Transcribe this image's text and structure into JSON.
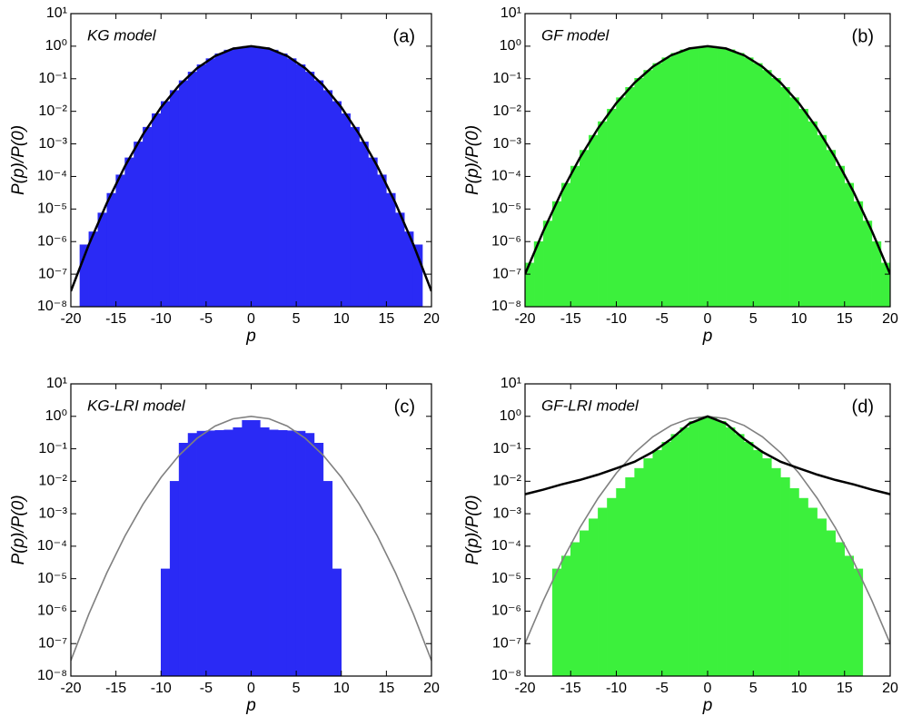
{
  "chart_data": [
    {
      "type": "histogram",
      "title": "KG model",
      "panel": "(a)",
      "xlabel": "p",
      "ylabel": "P(p)/P(0)",
      "color": "#2a2af5",
      "log_y": true,
      "bins": [
        -20,
        -19,
        -18,
        -17,
        -16,
        -15,
        -14,
        -13,
        -12,
        -11,
        -10,
        -9,
        -8,
        -7,
        -6,
        -5,
        -4,
        -3,
        -2,
        -1,
        0,
        1,
        2,
        3,
        4,
        5,
        6,
        7,
        8,
        9,
        10,
        11,
        12,
        13,
        14,
        15,
        16,
        17,
        18,
        19,
        20
      ],
      "values": [
        0,
        8e-07,
        2e-06,
        7.6e-06,
        3.04e-05,
        0.000112,
        0.000374,
        0.00115,
        0.00326,
        0.00846,
        0.0201,
        0.0438,
        0.0876,
        0.161,
        0.27,
        0.416,
        0.589,
        0.763,
        0.907,
        0.989,
        0.989,
        0.907,
        0.763,
        0.589,
        0.416,
        0.27,
        0.161,
        0.0876,
        0.0438,
        0.0201,
        0.00846,
        0.00326,
        0.00115,
        0.000374,
        0.000112,
        3.04e-05,
        7.6e-06,
        2e-06,
        8e-07,
        0
      ],
      "curves": [
        {
          "color": "#000000",
          "x": [
            -20,
            -18,
            -16,
            -14,
            -12,
            -10,
            -8,
            -6,
            -4,
            -2,
            0,
            2,
            4,
            6,
            8,
            10,
            12,
            14,
            16,
            18,
            20
          ],
          "values": [
            3e-08,
            8.1e-07,
            1.54e-05,
            0.000207,
            0.00196,
            0.0132,
            0.0626,
            0.21,
            0.5,
            0.841,
            1,
            0.841,
            0.5,
            0.21,
            0.0626,
            0.0132,
            0.00196,
            0.000207,
            1.54e-05,
            8.1e-07,
            3e-08
          ]
        }
      ],
      "xlim": [
        -20,
        20
      ],
      "xticks": [
        -20,
        -15,
        -10,
        -5,
        0,
        5,
        10,
        15,
        20
      ],
      "ylim": [
        1e-08,
        10
      ],
      "yticks": [
        {
          "value": 1e-08,
          "label": "10⁻⁸"
        },
        {
          "value": 1e-07,
          "label": "10⁻⁷"
        },
        {
          "value": 1e-06,
          "label": "10⁻⁶"
        },
        {
          "value": 1e-05,
          "label": "10⁻⁵"
        },
        {
          "value": 0.0001,
          "label": "10⁻⁴"
        },
        {
          "value": 0.001,
          "label": "10⁻³"
        },
        {
          "value": 0.01,
          "label": "10⁻²"
        },
        {
          "value": 0.1,
          "label": "10⁻¹"
        },
        {
          "value": 1,
          "label": "10⁰"
        },
        {
          "value": 10,
          "label": "10¹"
        }
      ]
    },
    {
      "type": "histogram",
      "title": "GF model",
      "panel": "(b)",
      "xlabel": "p",
      "ylabel": "P(p)/P(0)",
      "color": "#3cf03c",
      "log_y": true,
      "bins": [
        -20,
        -19,
        -18,
        -17,
        -16,
        -15,
        -14,
        -13,
        -12,
        -11,
        -10,
        -9,
        -8,
        -7,
        -6,
        -5,
        -4,
        -3,
        -2,
        -1,
        0,
        1,
        2,
        3,
        4,
        5,
        6,
        7,
        8,
        9,
        10,
        11,
        12,
        13,
        14,
        15,
        16,
        17,
        18,
        19,
        20
      ],
      "values": [
        2.2e-07,
        1e-06,
        4.3e-06,
        1.7e-05,
        6.2e-05,
        0.000208,
        0.00064,
        0.00184,
        0.00483,
        0.0117,
        0.0263,
        0.0543,
        0.1035,
        0.182,
        0.295,
        0.442,
        0.61,
        0.777,
        0.913,
        0.99,
        0.99,
        0.913,
        0.777,
        0.61,
        0.442,
        0.295,
        0.182,
        0.1035,
        0.0543,
        0.0263,
        0.0117,
        0.00483,
        0.00184,
        0.00064,
        0.000208,
        6.2e-05,
        1.7e-05,
        4.3e-06,
        1e-06,
        2.2e-07
      ],
      "curves": [
        {
          "color": "#000000",
          "x": [
            -20,
            -18,
            -16,
            -14,
            -12,
            -10,
            -8,
            -6,
            -4,
            -2,
            0,
            2,
            4,
            6,
            8,
            10,
            12,
            14,
            16,
            18,
            20
          ],
          "values": [
            1e-07,
            2.1e-06,
            3.3e-05,
            0.00037,
            0.003,
            0.0178,
            0.0755,
            0.234,
            0.524,
            0.851,
            1,
            0.851,
            0.524,
            0.234,
            0.0755,
            0.0178,
            0.003,
            0.00037,
            3.3e-05,
            2.1e-06,
            1e-07
          ]
        }
      ],
      "xlim": [
        -20,
        20
      ],
      "xticks": [
        -20,
        -15,
        -10,
        -5,
        0,
        5,
        10,
        15,
        20
      ],
      "ylim": [
        1e-08,
        10
      ],
      "yticks": [
        {
          "value": 1e-08,
          "label": "10⁻⁸"
        },
        {
          "value": 1e-07,
          "label": "10⁻⁷"
        },
        {
          "value": 1e-06,
          "label": "10⁻⁶"
        },
        {
          "value": 1e-05,
          "label": "10⁻⁵"
        },
        {
          "value": 0.0001,
          "label": "10⁻⁴"
        },
        {
          "value": 0.001,
          "label": "10⁻³"
        },
        {
          "value": 0.01,
          "label": "10⁻²"
        },
        {
          "value": 0.1,
          "label": "10⁻¹"
        },
        {
          "value": 1,
          "label": "10⁰"
        },
        {
          "value": 10,
          "label": "10¹"
        }
      ]
    },
    {
      "type": "histogram",
      "title": "KG-LRI model",
      "panel": "(c)",
      "xlabel": "p",
      "ylabel": "P(p)/P(0)",
      "color": "#2a2af5",
      "log_y": true,
      "bins": [
        -20,
        -19,
        -18,
        -17,
        -16,
        -15,
        -14,
        -13,
        -12,
        -11,
        -10,
        -9,
        -8,
        -7,
        -6,
        -5,
        -4,
        -3,
        -2,
        -1,
        0,
        1,
        2,
        3,
        4,
        5,
        6,
        7,
        8,
        9,
        10,
        11,
        12,
        13,
        14,
        15,
        16,
        17,
        18,
        19,
        20
      ],
      "values": [
        0,
        0,
        0,
        0,
        0,
        0,
        0,
        0,
        0,
        0,
        2e-05,
        0.01,
        0.15,
        0.3,
        0.35,
        0.36,
        0.37,
        0.38,
        0.45,
        0.75,
        0.75,
        0.45,
        0.38,
        0.37,
        0.36,
        0.35,
        0.3,
        0.15,
        0.01,
        2e-05,
        0,
        0,
        0,
        0,
        0,
        0,
        0,
        0,
        0,
        0
      ],
      "curves": [
        {
          "color": "#808080",
          "x": [
            -20,
            -18,
            -16,
            -14,
            -12,
            -10,
            -8,
            -6,
            -4,
            -2,
            0,
            2,
            4,
            6,
            8,
            10,
            12,
            14,
            16,
            18,
            20
          ],
          "values": [
            3e-08,
            8.1e-07,
            1.54e-05,
            0.000207,
            0.00196,
            0.0132,
            0.0626,
            0.21,
            0.5,
            0.841,
            1,
            0.841,
            0.5,
            0.21,
            0.0626,
            0.0132,
            0.00196,
            0.000207,
            1.54e-05,
            8.1e-07,
            3e-08
          ]
        }
      ],
      "xlim": [
        -20,
        20
      ],
      "xticks": [
        -20,
        -15,
        -10,
        -5,
        0,
        5,
        10,
        15,
        20
      ],
      "ylim": [
        1e-08,
        10
      ],
      "yticks": [
        {
          "value": 1e-08,
          "label": "10⁻⁸"
        },
        {
          "value": 1e-07,
          "label": "10⁻⁷"
        },
        {
          "value": 1e-06,
          "label": "10⁻⁶"
        },
        {
          "value": 1e-05,
          "label": "10⁻⁵"
        },
        {
          "value": 0.0001,
          "label": "10⁻⁴"
        },
        {
          "value": 0.001,
          "label": "10⁻³"
        },
        {
          "value": 0.01,
          "label": "10⁻²"
        },
        {
          "value": 0.1,
          "label": "10⁻¹"
        },
        {
          "value": 1,
          "label": "10⁰"
        },
        {
          "value": 10,
          "label": "10¹"
        }
      ]
    },
    {
      "type": "histogram",
      "title": "GF-LRI model",
      "panel": "(d)",
      "xlabel": "p",
      "ylabel": "P(p)/P(0)",
      "color": "#3cf03c",
      "log_y": true,
      "bins": [
        -20,
        -19,
        -18,
        -17,
        -16,
        -15,
        -14,
        -13,
        -12,
        -11,
        -10,
        -9,
        -8,
        -7,
        -6,
        -5,
        -4,
        -3,
        -2,
        -1,
        0,
        1,
        2,
        3,
        4,
        5,
        6,
        7,
        8,
        9,
        10,
        11,
        12,
        13,
        14,
        15,
        16,
        17,
        18,
        19,
        20
      ],
      "values": [
        0,
        0,
        0,
        2e-05,
        5e-05,
        0.00013,
        0.0003,
        0.0007,
        0.0015,
        0.003,
        0.006,
        0.013,
        0.025,
        0.05,
        0.09,
        0.16,
        0.28,
        0.45,
        0.7,
        0.95,
        0.95,
        0.7,
        0.45,
        0.28,
        0.16,
        0.09,
        0.05,
        0.025,
        0.013,
        0.006,
        0.003,
        0.0015,
        0.0007,
        0.0003,
        0.00013,
        5e-05,
        2e-05,
        0,
        0,
        0
      ],
      "curves": [
        {
          "color": "#808080",
          "x": [
            -20,
            -18,
            -16,
            -14,
            -12,
            -10,
            -8,
            -6,
            -4,
            -2,
            0,
            2,
            4,
            6,
            8,
            10,
            12,
            14,
            16,
            18,
            20
          ],
          "values": [
            1e-07,
            2.1e-06,
            3.3e-05,
            0.00037,
            0.003,
            0.0178,
            0.0755,
            0.234,
            0.524,
            0.851,
            1,
            0.851,
            0.524,
            0.234,
            0.0755,
            0.0178,
            0.003,
            0.00037,
            3.3e-05,
            2.1e-06,
            1e-07
          ]
        },
        {
          "color": "#000000",
          "x": [
            -20,
            -18,
            -16,
            -14,
            -12,
            -10,
            -8,
            -6,
            -4,
            -2,
            0,
            2,
            4,
            6,
            8,
            10,
            12,
            14,
            16,
            18,
            20
          ],
          "values": [
            0.004,
            0.0055,
            0.008,
            0.011,
            0.016,
            0.025,
            0.04,
            0.08,
            0.2,
            0.6,
            1,
            0.6,
            0.2,
            0.08,
            0.04,
            0.025,
            0.016,
            0.011,
            0.008,
            0.0055,
            0.004
          ]
        }
      ],
      "xlim": [
        -20,
        20
      ],
      "xticks": [
        -20,
        -15,
        -10,
        -5,
        0,
        5,
        10,
        15,
        20
      ],
      "ylim": [
        1e-08,
        10
      ],
      "yticks": [
        {
          "value": 1e-08,
          "label": "10⁻⁸"
        },
        {
          "value": 1e-07,
          "label": "10⁻⁷"
        },
        {
          "value": 1e-06,
          "label": "10⁻⁶"
        },
        {
          "value": 1e-05,
          "label": "10⁻⁵"
        },
        {
          "value": 0.0001,
          "label": "10⁻⁴"
        },
        {
          "value": 0.001,
          "label": "10⁻³"
        },
        {
          "value": 0.01,
          "label": "10⁻²"
        },
        {
          "value": 0.1,
          "label": "10⁻¹"
        },
        {
          "value": 1,
          "label": "10⁰"
        },
        {
          "value": 10,
          "label": "10¹"
        }
      ]
    }
  ]
}
